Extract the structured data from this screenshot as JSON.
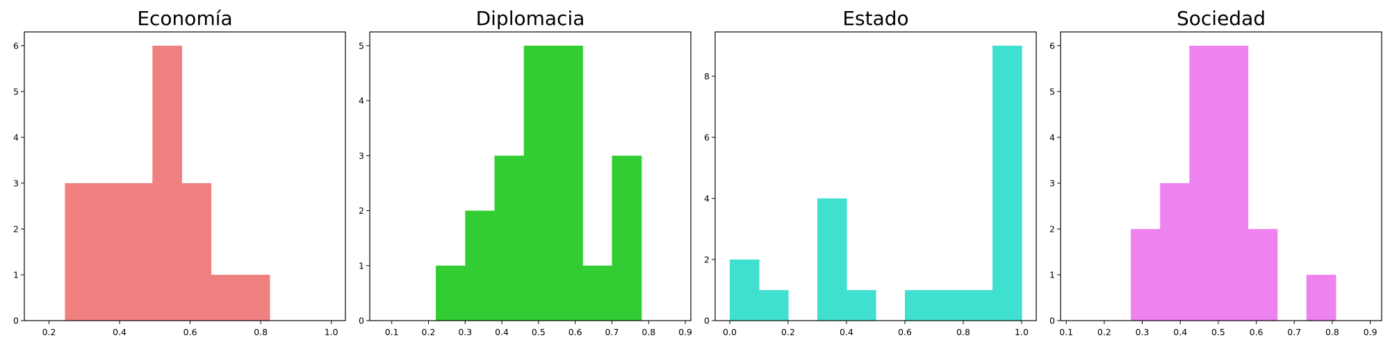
{
  "chart_data": [
    {
      "type": "histogram",
      "title": "Economía",
      "color": "#f08080",
      "xlim": [
        0.13,
        1.04
      ],
      "ylim": [
        0,
        6.3
      ],
      "xticks": [
        0.2,
        0.4,
        0.6,
        0.8,
        1.0
      ],
      "xtick_labels": [
        "0.2",
        "0.4",
        "0.6",
        "0.8",
        "1.0"
      ],
      "yticks": [
        0,
        1,
        2,
        3,
        4,
        5,
        6
      ],
      "bin_edges": [
        0.245,
        0.328,
        0.41,
        0.493,
        0.576,
        0.659,
        0.742,
        0.825
      ],
      "counts": [
        3,
        3,
        3,
        6,
        3,
        1,
        1
      ]
    },
    {
      "type": "histogram",
      "title": "Diplomacia",
      "color": "#32cd32",
      "xlim": [
        0.04,
        0.915
      ],
      "ylim": [
        0,
        5.25
      ],
      "xticks": [
        0.1,
        0.2,
        0.3,
        0.4,
        0.5,
        0.6,
        0.7,
        0.8,
        0.9
      ],
      "xtick_labels": [
        "0.1",
        "0.2",
        "0.3",
        "0.4",
        "0.5",
        "0.6",
        "0.7",
        "0.8",
        "0.9"
      ],
      "yticks": [
        0,
        1,
        2,
        3,
        4,
        5
      ],
      "bin_edges": [
        0.22,
        0.3,
        0.38,
        0.46,
        0.54,
        0.62,
        0.7,
        0.78
      ],
      "counts": [
        1,
        2,
        3,
        5,
        5,
        1,
        3
      ]
    },
    {
      "type": "histogram",
      "title": "Estado",
      "color": "#40e0d0",
      "xlim": [
        -0.05,
        1.05
      ],
      "ylim": [
        0,
        9.45
      ],
      "xticks": [
        0.0,
        0.2,
        0.4,
        0.6,
        0.8,
        1.0
      ],
      "xtick_labels": [
        "0.0",
        "0.2",
        "0.4",
        "0.6",
        "0.8",
        "1.0"
      ],
      "yticks": [
        0,
        2,
        4,
        6,
        8
      ],
      "bin_edges": [
        0.0,
        0.1,
        0.2,
        0.3,
        0.4,
        0.5,
        0.6,
        0.7,
        0.8,
        0.9,
        1.0
      ],
      "counts": [
        2,
        1,
        0,
        4,
        1,
        0,
        1,
        1,
        1,
        9
      ]
    },
    {
      "type": "histogram",
      "title": "Sociedad",
      "color": "#ee82ee",
      "xlim": [
        0.085,
        0.93
      ],
      "ylim": [
        0,
        6.3
      ],
      "xticks": [
        0.1,
        0.2,
        0.3,
        0.4,
        0.5,
        0.6,
        0.7,
        0.8,
        0.9
      ],
      "xtick_labels": [
        "0.1",
        "0.2",
        "0.3",
        "0.4",
        "0.5",
        "0.6",
        "0.7",
        "0.8",
        "0.9"
      ],
      "yticks": [
        0,
        1,
        2,
        3,
        4,
        5,
        6
      ],
      "bin_edges": [
        0.27,
        0.347,
        0.424,
        0.501,
        0.578,
        0.655,
        0.732,
        0.809
      ],
      "counts": [
        2,
        3,
        6,
        6,
        2,
        0,
        1
      ]
    }
  ]
}
